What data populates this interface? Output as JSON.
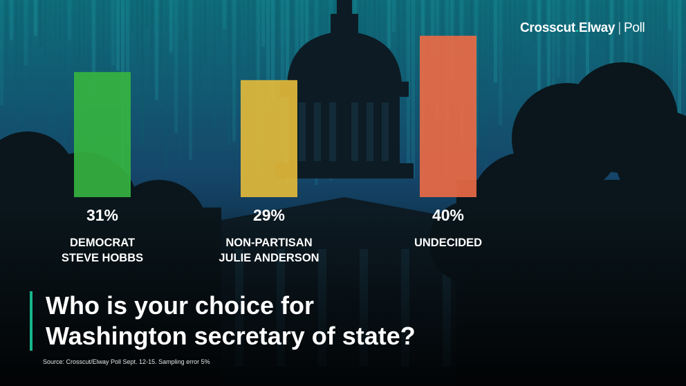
{
  "brand": {
    "name": "Crosscut",
    "dot": ".",
    "partner": "Elway",
    "separator": "|",
    "suffix": "Poll"
  },
  "question": "Who is your choice for\nWashington secretary of state?",
  "source": "Source: Crosscut/Elway Poll Sept. 12-15. Sampling error 5%",
  "colors": {
    "accent": "#17b58c"
  },
  "chart_data": {
    "type": "bar",
    "categories": [
      "DEMOCRAT\nSTEVE HOBBS",
      "NON-PARTISAN\nJULIE ANDERSON",
      "UNDECIDED"
    ],
    "values": [
      31,
      29,
      40
    ],
    "data_labels": [
      "31%",
      "29%",
      "40%"
    ],
    "colors": [
      "#36b340",
      "#e2b93a",
      "#ea6a45"
    ],
    "ylim": [
      0,
      42
    ],
    "grid": false,
    "title": "",
    "xlabel": "",
    "ylabel": ""
  }
}
